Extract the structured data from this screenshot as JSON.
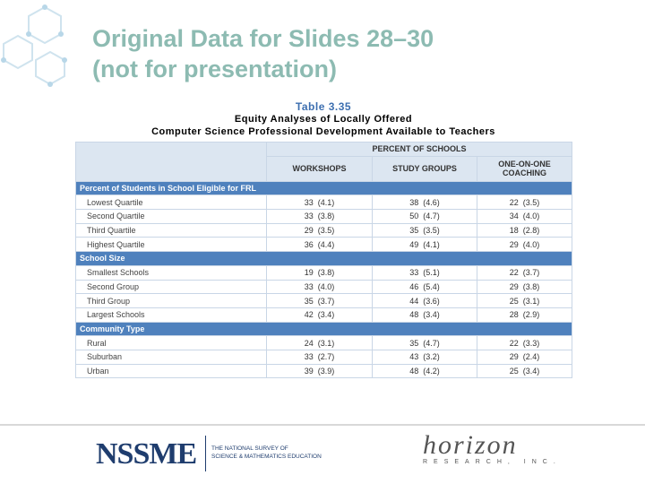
{
  "slide": {
    "title_lines": [
      "Original Data for Slides 28–30",
      "(not for presentation)"
    ]
  },
  "table": {
    "caption_lines": [
      "Table 3.35",
      "Equity Analyses of Locally Offered",
      "Computer Science Professional Development Available to Teachers"
    ],
    "super_header": "PERCENT OF SCHOOLS",
    "columns": [
      "WORKSHOPS",
      "STUDY GROUPS",
      "ONE-ON-ONE COACHING"
    ],
    "groups": [
      {
        "name": "Percent of Students in School Eligible for FRL",
        "rows": [
          {
            "label": "Lowest Quartile",
            "cells": [
              [
                "33",
                "(4.1)"
              ],
              [
                "38",
                "(4.6)"
              ],
              [
                "22",
                "(3.5)"
              ]
            ]
          },
          {
            "label": "Second Quartile",
            "cells": [
              [
                "33",
                "(3.8)"
              ],
              [
                "50",
                "(4.7)"
              ],
              [
                "34",
                "(4.0)"
              ]
            ]
          },
          {
            "label": "Third Quartile",
            "cells": [
              [
                "29",
                "(3.5)"
              ],
              [
                "35",
                "(3.5)"
              ],
              [
                "18",
                "(2.8)"
              ]
            ]
          },
          {
            "label": "Highest Quartile",
            "cells": [
              [
                "36",
                "(4.4)"
              ],
              [
                "49",
                "(4.1)"
              ],
              [
                "29",
                "(4.0)"
              ]
            ]
          }
        ]
      },
      {
        "name": "School Size",
        "rows": [
          {
            "label": "Smallest Schools",
            "cells": [
              [
                "19",
                "(3.8)"
              ],
              [
                "33",
                "(5.1)"
              ],
              [
                "22",
                "(3.7)"
              ]
            ]
          },
          {
            "label": "Second Group",
            "cells": [
              [
                "33",
                "(4.0)"
              ],
              [
                "46",
                "(5.4)"
              ],
              [
                "29",
                "(3.8)"
              ]
            ]
          },
          {
            "label": "Third Group",
            "cells": [
              [
                "35",
                "(3.7)"
              ],
              [
                "44",
                "(3.6)"
              ],
              [
                "25",
                "(3.1)"
              ]
            ]
          },
          {
            "label": "Largest Schools",
            "cells": [
              [
                "42",
                "(3.4)"
              ],
              [
                "48",
                "(3.4)"
              ],
              [
                "28",
                "(2.9)"
              ]
            ]
          }
        ]
      },
      {
        "name": "Community Type",
        "rows": [
          {
            "label": "Rural",
            "cells": [
              [
                "24",
                "(3.1)"
              ],
              [
                "35",
                "(4.7)"
              ],
              [
                "22",
                "(3.3)"
              ]
            ]
          },
          {
            "label": "Suburban",
            "cells": [
              [
                "33",
                "(2.7)"
              ],
              [
                "43",
                "(3.2)"
              ],
              [
                "29",
                "(2.4)"
              ]
            ]
          },
          {
            "label": "Urban",
            "cells": [
              [
                "39",
                "(3.9)"
              ],
              [
                "48",
                "(4.2)"
              ],
              [
                "25",
                "(3.4)"
              ]
            ]
          }
        ]
      }
    ]
  },
  "footer": {
    "nssme": "NSSME",
    "nssme_lines": [
      "THE NATIONAL SURVEY OF",
      "SCIENCE & MATHEMATICS EDUCATION"
    ],
    "horizon": "horizon",
    "horizon_sub": "RESEARCH, INC."
  }
}
